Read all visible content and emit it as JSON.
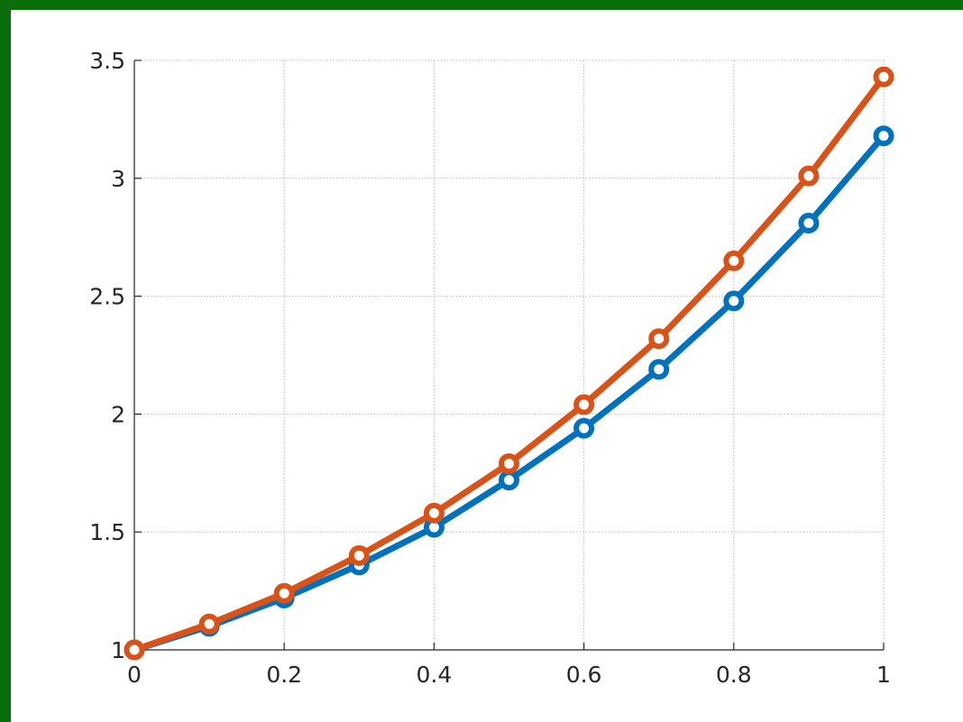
{
  "chart_data": {
    "type": "line",
    "title": "",
    "xlabel": "",
    "ylabel": "",
    "xlim": [
      0,
      1
    ],
    "ylim": [
      1,
      3.5
    ],
    "grid": true,
    "x_ticks": [
      "0",
      "0.2",
      "0.4",
      "0.6",
      "0.8",
      "1"
    ],
    "y_ticks": [
      "1",
      "1.5",
      "2",
      "2.5",
      "3",
      "3.5"
    ],
    "x": [
      0,
      0.1,
      0.2,
      0.3,
      0.4,
      0.5,
      0.6,
      0.7,
      0.8,
      0.9,
      1.0
    ],
    "series": [
      {
        "color": "#0072bd",
        "marker": "circle",
        "values": [
          1.0,
          1.1,
          1.22,
          1.36,
          1.52,
          1.72,
          1.94,
          2.19,
          2.48,
          2.81,
          3.18
        ]
      },
      {
        "color": "#d95319",
        "marker": "circle",
        "values": [
          1.0,
          1.11,
          1.24,
          1.4,
          1.58,
          1.79,
          2.04,
          2.32,
          2.65,
          3.01,
          3.43
        ]
      }
    ]
  },
  "page": {
    "background": "#0a6e0a",
    "plot_background": "#ffffff"
  }
}
